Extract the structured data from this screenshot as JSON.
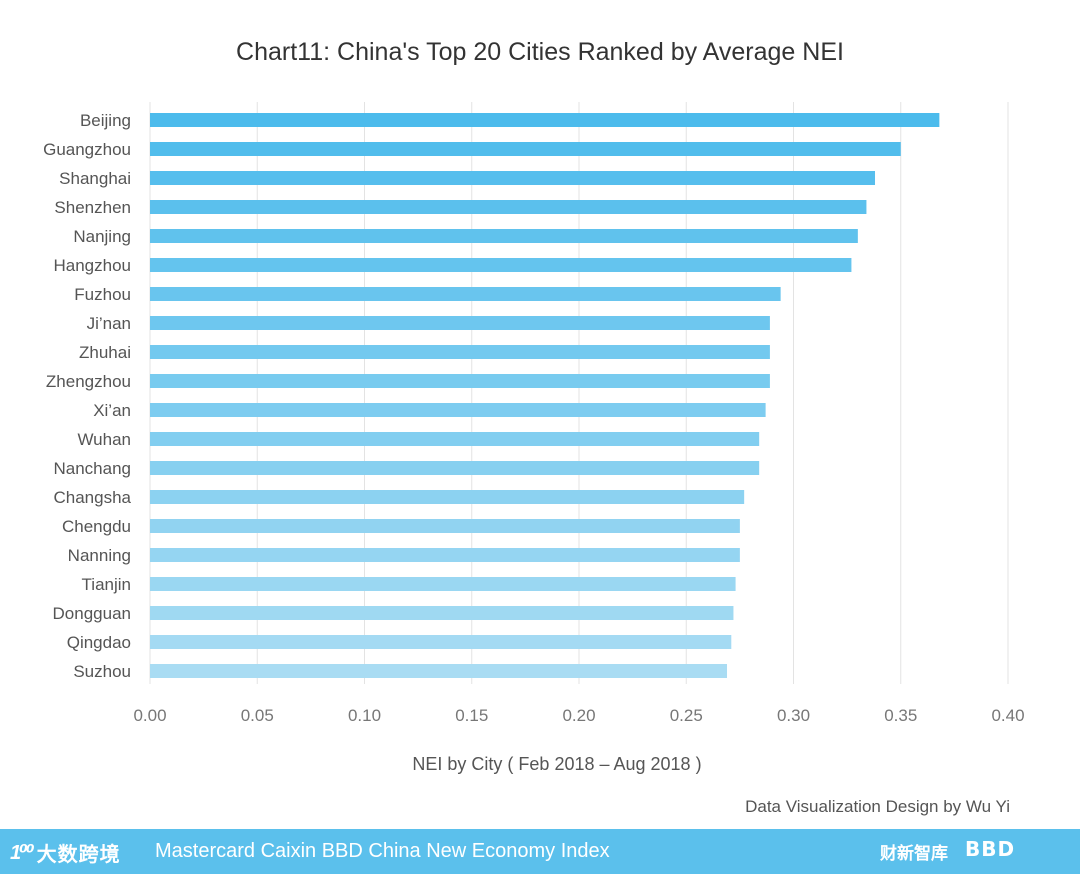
{
  "chart_data": {
    "type": "bar",
    "orientation": "horizontal",
    "title": "Chart11:  China's Top 20 Cities Ranked by Average NEI",
    "xlabel": "NEI by City ( Feb 2018 – Aug 2018 )",
    "ylabel": "",
    "xlim": [
      0,
      0.4
    ],
    "ticks": [
      "0.00",
      "0.05",
      "0.10",
      "0.15",
      "0.20",
      "0.25",
      "0.30",
      "0.35",
      "0.40"
    ],
    "grid": true,
    "categories": [
      "Beijing",
      "Guangzhou",
      "Shanghai",
      "Shenzhen",
      "Nanjing",
      "Hangzhou",
      "Fuzhou",
      "Ji’nan",
      "Zhuhai",
      "Zhengzhou",
      "Xi’an",
      "Wuhan",
      "Nanchang",
      "Changsha",
      "Chengdu",
      "Nanning",
      "Tianjin",
      "Dongguan",
      "Qingdao",
      "Suzhou"
    ],
    "values": [
      0.368,
      0.35,
      0.338,
      0.334,
      0.33,
      0.327,
      0.294,
      0.289,
      0.289,
      0.289,
      0.287,
      0.284,
      0.284,
      0.277,
      0.275,
      0.275,
      0.273,
      0.272,
      0.271,
      0.269
    ],
    "colors": {
      "top": "#4cbbec",
      "bottom": "#a9dcf3"
    }
  },
  "credit": "Data Visualization Design by Wu Yi",
  "footer": {
    "logo_mark": "1⁰⁰",
    "logo_text": "大数跨境",
    "title": "Mastercard Caixin BBD China New Economy Index",
    "logo_right_1": "财新智库",
    "logo_right_2": "BBD"
  }
}
